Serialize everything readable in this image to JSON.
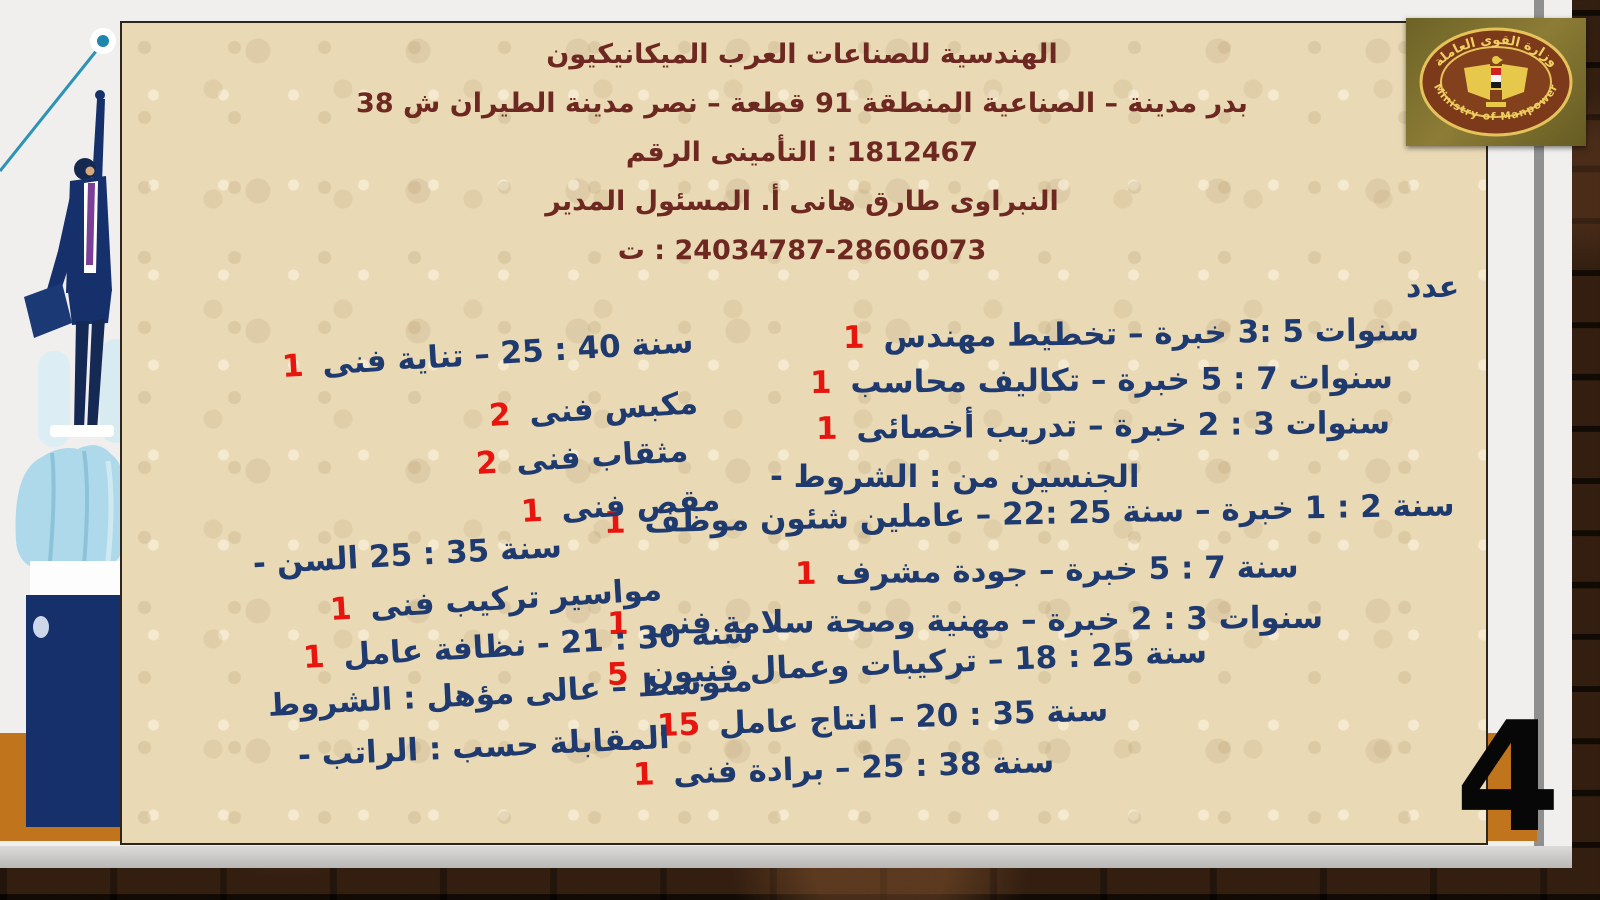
{
  "page_number": "4",
  "logo": {
    "arabic": "وزارة القوى العاملة",
    "english": "Ministry of Manpower"
  },
  "header": {
    "lines": [
      "الميكانيكيون العرب  للصناعات الهندسية",
      "38 ش الطيران مدينة نصر – قطعة 91 المنطقة الصناعية – مدينة بدر",
      "الرقم التأمينى : 1812467",
      "المدير المسئول .أ هانى طارق النبراوى",
      "ت : 24034787-28606073"
    ]
  },
  "count_label": "عدد",
  "jobs_right": [
    {
      "n": "1",
      "t": "مهندس تخطيط – خبرة  3: 5 سنوات"
    },
    {
      "n": "1",
      "t": "محاسب تكاليف – خبرة 5 : 7 سنوات"
    },
    {
      "n": "1",
      "t": "أخصائى تدريب – خبرة 2 : 3 سنوات"
    },
    {
      "n": "",
      "t": "- الشروط : من الجنسين"
    },
    {
      "n": "1",
      "t": "موظف شئون عاملين – 22: 25 سنة – خبرة 1 : 2 سنة"
    },
    {
      "n": "1",
      "t": "مشرف جودة – خبرة 5 : 7 سنة"
    },
    {
      "n": "1",
      "t": "فنى سلامة وصحة مهنية – خبرة 2 : 3 سنوات"
    },
    {
      "n": "5",
      "t": "فنيون وعمال تركيبات – 18 : 25 سنة"
    },
    {
      "n": "15",
      "t": "عامل انتاج – 20 : 35 سنة"
    },
    {
      "n": "1",
      "t": "فنى برادة – 25 : 38 سنة"
    }
  ],
  "jobs_left": [
    {
      "n": "1",
      "t": "فنى تناية – 25 : 40 سنة"
    },
    {
      "n": "2",
      "t": "فنى مكبس"
    },
    {
      "n": "2",
      "t": "فنى مثقاب"
    },
    {
      "n": "1",
      "t": "فنى مقص"
    },
    {
      "n": "",
      "t": "- السن 25 : 35 سنة"
    },
    {
      "n": "1",
      "t": "فنى تركيب مواسير"
    },
    {
      "n": "1",
      "t": "عامل نظافة - 21 : 30 سنة"
    },
    {
      "n": "",
      "t": "الشروط : مؤهل عالى – متوسط"
    },
    {
      "n": "",
      "t": "- الراتب : حسب المقابلة"
    }
  ],
  "colors": {
    "accent_red": "#e8150f",
    "body_blue": "#1e3a6e",
    "header_maroon": "#6e2822",
    "parchment": "#e9d9b5",
    "orange_band": "#c0751d",
    "navy_suit": "#16306b",
    "teal": "#2b93b5",
    "logo_gold": "#e8c84a",
    "logo_olive": "#6d6326"
  }
}
